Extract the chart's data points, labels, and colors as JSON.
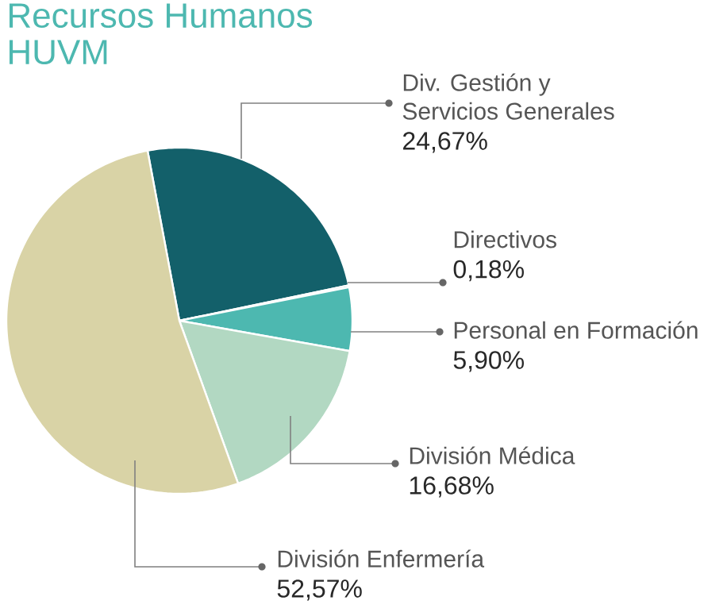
{
  "chart_data": {
    "type": "pie",
    "title": "Recursos Humanos HUVM",
    "categories": [
      "Div. Gestión y Servicios Generales",
      "Directivos",
      "Personal en Formación",
      "División Médica",
      "División Enfermería"
    ],
    "values": [
      24.67,
      0.18,
      5.9,
      16.68,
      52.57
    ],
    "value_labels": [
      "24,67%",
      "0,18%",
      "5,90%",
      "16,68%",
      "52,57%"
    ],
    "colors": [
      "#13606a",
      "#2e7d84",
      "#4db8b0",
      "#b2d8c2",
      "#d9d3a6"
    ]
  }
}
